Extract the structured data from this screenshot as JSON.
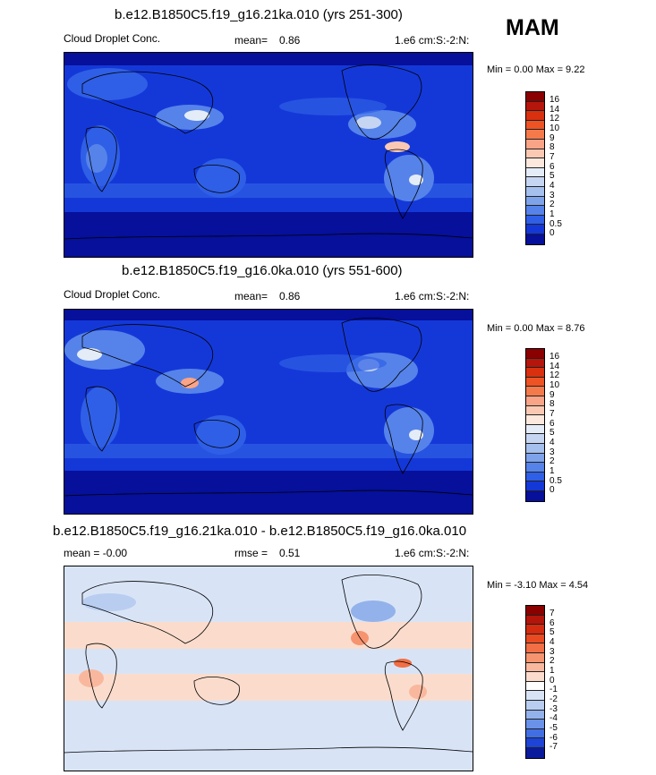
{
  "season": "MAM",
  "panels": [
    {
      "title": "b.e12.B1850C5.f19_g16.21ka.010 (yrs 251-300)",
      "left_label": "Cloud Droplet Conc.",
      "mid_label": "mean=",
      "mid_value": "0.86",
      "right_label": "1.e6 cm:S:-2:N:",
      "minmax": "Min =   0.00 Max =   9.22"
    },
    {
      "title": "b.e12.B1850C5.f19_g16.0ka.010 (yrs 551-600)",
      "left_label": "Cloud Droplet Conc.",
      "mid_label": "mean=",
      "mid_value": "0.86",
      "right_label": "1.e6 cm:S:-2:N:",
      "minmax": "Min =   0.00 Max =   8.76"
    },
    {
      "title": "b.e12.B1850C5.f19_g16.21ka.010 - b.e12.B1850C5.f19_g16.0ka.010",
      "left_label": "mean =  -0.00",
      "mid_label": "rmse =",
      "mid_value": "0.51",
      "right_label": "1.e6 cm:S:-2:N:",
      "minmax": "Min =  -3.10 Max =   4.54"
    }
  ],
  "chart_data": [
    {
      "type": "heatmap",
      "title": "b.e12.B1850C5.f19_g16.21ka.010 (yrs 251-300)",
      "variable": "Cloud Droplet Conc.",
      "units": "1.e6 cm:S:-2:N:",
      "mean": 0.86,
      "min": 0.0,
      "max": 9.22,
      "levels": [
        "16",
        "14",
        "12",
        "10",
        "9",
        "8",
        "7",
        "6",
        "5",
        "4",
        "3",
        "2",
        "1",
        "0.5",
        "0"
      ],
      "colors": [
        "#8b0000",
        "#b5150b",
        "#d9300f",
        "#ee5324",
        "#f47a4c",
        "#f9a486",
        "#fbc9b3",
        "#fce8dc",
        "#e4ecf8",
        "#c6d6f2",
        "#a6c0ee",
        "#7ea3ea",
        "#5683ea",
        "#2f5fe6",
        "#1438d8",
        "#06109a"
      ]
    },
    {
      "type": "heatmap",
      "title": "b.e12.B1850C5.f19_g16.0ka.010 (yrs 551-600)",
      "variable": "Cloud Droplet Conc.",
      "units": "1.e6 cm:S:-2:N:",
      "mean": 0.86,
      "min": 0.0,
      "max": 8.76,
      "levels": [
        "16",
        "14",
        "12",
        "10",
        "9",
        "8",
        "7",
        "6",
        "5",
        "4",
        "3",
        "2",
        "1",
        "0.5",
        "0"
      ],
      "colors": [
        "#8b0000",
        "#b5150b",
        "#d9300f",
        "#ee5324",
        "#f47a4c",
        "#f9a486",
        "#fbc9b3",
        "#fce8dc",
        "#e4ecf8",
        "#c6d6f2",
        "#a6c0ee",
        "#7ea3ea",
        "#5683ea",
        "#2f5fe6",
        "#1438d8",
        "#06109a"
      ]
    },
    {
      "type": "heatmap",
      "title": "b.e12.B1850C5.f19_g16.21ka.010 - b.e12.B1850C5.f19_g16.0ka.010",
      "units": "1.e6 cm:S:-2:N:",
      "mean": -0.0,
      "rmse": 0.51,
      "min": -3.1,
      "max": 4.54,
      "levels": [
        "7",
        "6",
        "5",
        "4",
        "3",
        "2",
        "1",
        "0",
        "-1",
        "-2",
        "-3",
        "-4",
        "-5",
        "-6",
        "-7"
      ],
      "colors": [
        "#8b0000",
        "#b3150b",
        "#d52b10",
        "#ea4a22",
        "#f26e44",
        "#f69470",
        "#f9b89e",
        "#fbdccc",
        "#ffffff",
        "#d8e4f6",
        "#b8cdf0",
        "#93b2eb",
        "#6a92e8",
        "#416fe3",
        "#1d44d6",
        "#0a1a9c"
      ]
    }
  ]
}
